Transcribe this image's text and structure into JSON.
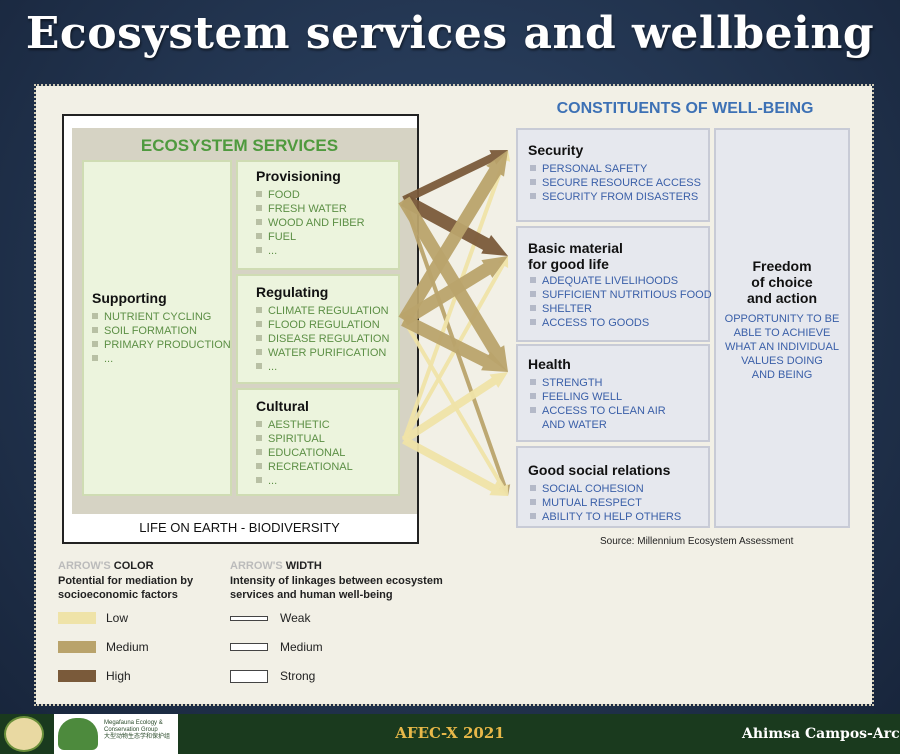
{
  "slide": {
    "title": "Ecosystem services and wellbeing"
  },
  "ecosystem_services": {
    "heading": "ECOSYSTEM SERVICES",
    "supporting": {
      "title": "Supporting",
      "items": [
        "NUTRIENT CYCLING",
        "SOIL FORMATION",
        "PRIMARY PRODUCTION",
        "..."
      ]
    },
    "provisioning": {
      "title": "Provisioning",
      "items": [
        "FOOD",
        "FRESH WATER",
        "WOOD AND FIBER",
        "FUEL",
        "..."
      ]
    },
    "regulating": {
      "title": "Regulating",
      "items": [
        "CLIMATE REGULATION",
        "FLOOD REGULATION",
        "DISEASE REGULATION",
        "WATER PURIFICATION",
        "..."
      ]
    },
    "cultural": {
      "title": "Cultural",
      "items": [
        "AESTHETIC",
        "SPIRITUAL",
        "EDUCATIONAL",
        "RECREATIONAL",
        "..."
      ]
    },
    "footer": "LIFE ON EARTH - BIODIVERSITY"
  },
  "wellbeing": {
    "heading": "CONSTITUENTS OF WELL-BEING",
    "security": {
      "title": "Security",
      "items": [
        "PERSONAL SAFETY",
        "SECURE RESOURCE ACCESS",
        "SECURITY FROM DISASTERS"
      ]
    },
    "basic": {
      "title_line1": "Basic material",
      "title_line2": "for good life",
      "items": [
        "ADEQUATE LIVELIHOODS",
        "SUFFICIENT NUTRITIOUS FOOD",
        "SHELTER",
        "ACCESS TO GOODS"
      ]
    },
    "health": {
      "title": "Health",
      "items": [
        "STRENGTH",
        "FEELING WELL",
        "ACCESS TO CLEAN AIR"
      ],
      "continuation": "AND WATER"
    },
    "social": {
      "title": "Good social relations",
      "items": [
        "SOCIAL COHESION",
        "MUTUAL RESPECT",
        "ABILITY TO HELP OTHERS"
      ]
    },
    "freedom": {
      "title_lines": [
        "Freedom",
        "of choice",
        "and action"
      ],
      "text_lines": [
        "OPPORTUNITY TO BE",
        "ABLE TO ACHIEVE",
        "WHAT AN INDIVIDUAL",
        "VALUES DOING",
        "AND BEING"
      ]
    }
  },
  "source": "Source: Millennium Ecosystem Assessment",
  "legend": {
    "color": {
      "heading_prefix": "ARROW'S",
      "heading_word": "COLOR",
      "sub_line1": "Potential for mediation by",
      "sub_line2": "socioeconomic factors",
      "low": "Low",
      "medium": "Medium",
      "high": "High",
      "low_color": "#efe3a8",
      "medium_color": "#b9a36b",
      "high_color": "#7a5a3a"
    },
    "width": {
      "heading_prefix": "ARROW'S",
      "heading_word": "WIDTH",
      "sub_line1": "Intensity of linkages between ecosystem",
      "sub_line2": "services and human well-being",
      "weak": "Weak",
      "medium": "Medium",
      "strong": "Strong"
    }
  },
  "footer": {
    "event": "AFEC-X 2021",
    "presenter": "Ahimsa Campos-Arc",
    "org_line1": "Megafauna Ecology &",
    "org_line2": "Conservation Group",
    "org_line3": "大型动物生态学和保护组"
  },
  "links": [
    {
      "from": "provisioning",
      "to": "security",
      "intensity": "medium",
      "mediation": "high"
    },
    {
      "from": "provisioning",
      "to": "basic",
      "intensity": "strong",
      "mediation": "high"
    },
    {
      "from": "provisioning",
      "to": "health",
      "intensity": "strong",
      "mediation": "medium"
    },
    {
      "from": "provisioning",
      "to": "social",
      "intensity": "weak",
      "mediation": "medium"
    },
    {
      "from": "regulating",
      "to": "security",
      "intensity": "strong",
      "mediation": "medium"
    },
    {
      "from": "regulating",
      "to": "basic",
      "intensity": "strong",
      "mediation": "medium"
    },
    {
      "from": "regulating",
      "to": "health",
      "intensity": "strong",
      "mediation": "medium"
    },
    {
      "from": "regulating",
      "to": "social",
      "intensity": "weak",
      "mediation": "low"
    },
    {
      "from": "cultural",
      "to": "security",
      "intensity": "weak",
      "mediation": "low"
    },
    {
      "from": "cultural",
      "to": "basic",
      "intensity": "weak",
      "mediation": "low"
    },
    {
      "from": "cultural",
      "to": "health",
      "intensity": "medium",
      "mediation": "low"
    },
    {
      "from": "cultural",
      "to": "social",
      "intensity": "medium",
      "mediation": "low"
    }
  ]
}
